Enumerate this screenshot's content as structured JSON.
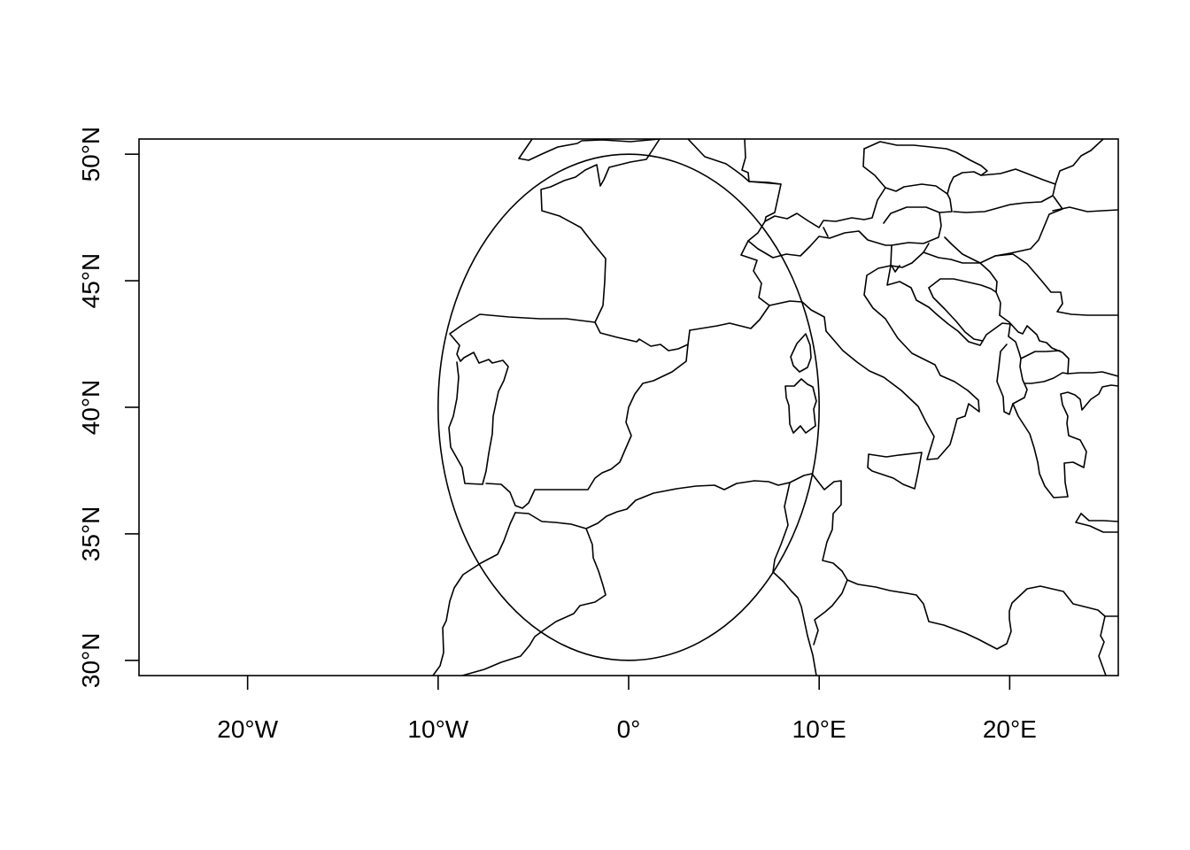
{
  "map": {
    "projection": "equirectangular",
    "lon_range": [
      -25.7,
      25.7
    ],
    "lat_range": [
      29.4,
      50.6
    ],
    "x_ticks": [
      {
        "value": -20,
        "label": "20°W"
      },
      {
        "value": -10,
        "label": "10°W"
      },
      {
        "value": 0,
        "label": "0°"
      },
      {
        "value": 10,
        "label": "10°E"
      },
      {
        "value": 20,
        "label": "20°E"
      }
    ],
    "y_ticks": [
      {
        "value": 30,
        "label": "30°N"
      },
      {
        "value": 35,
        "label": "35°N"
      },
      {
        "value": 40,
        "label": "40°N"
      },
      {
        "value": 45,
        "label": "45°N"
      },
      {
        "value": 50,
        "label": "50°N"
      }
    ],
    "circle": {
      "center_lon": 0,
      "center_lat": 40,
      "radius_lon": 10,
      "radius_lat": 10
    },
    "line_color": "#000000",
    "background": "#ffffff"
  }
}
